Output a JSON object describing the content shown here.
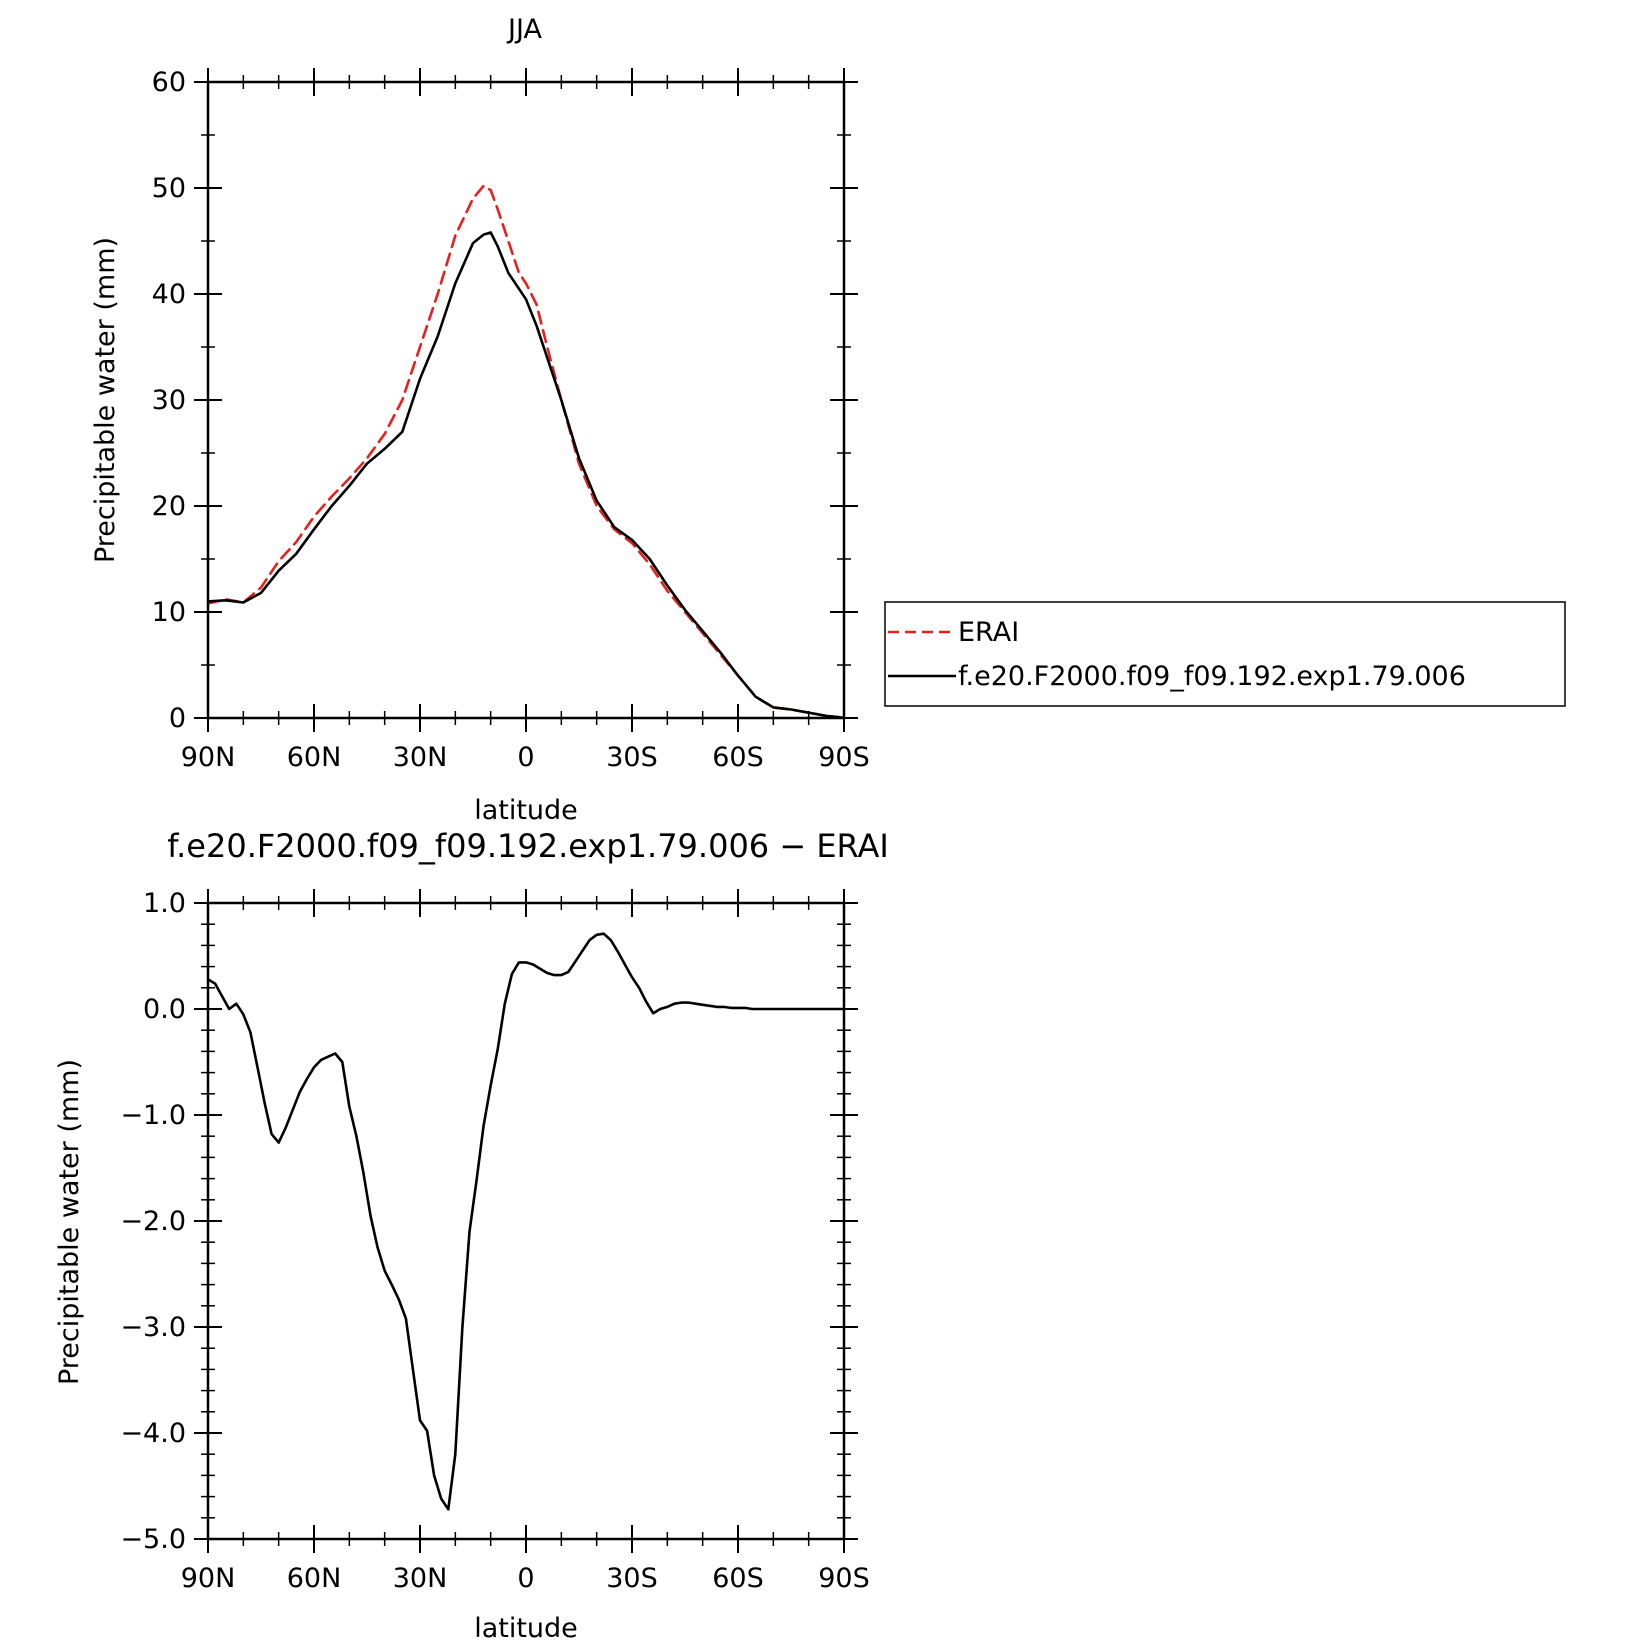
{
  "chart_data": [
    {
      "type": "line",
      "title": "JJA",
      "xlabel": "latitude",
      "ylabel": "Precipitable water (mm)",
      "xlim": [
        90,
        -90
      ],
      "ylim": [
        0,
        60
      ],
      "yticks": [
        0,
        10,
        20,
        30,
        40,
        50,
        60
      ],
      "ytick_labels": [
        "0",
        "10",
        "20",
        "30",
        "40",
        "50",
        "60"
      ],
      "xticks": [
        90,
        60,
        30,
        0,
        -30,
        -60,
        -90
      ],
      "xtick_labels": [
        "90N",
        "60N",
        "30N",
        "0",
        "30S",
        "60S",
        "90S"
      ],
      "legend_position": "right",
      "series": [
        {
          "name": "ERAI",
          "color": "#e8201d",
          "dash": "dashed",
          "x": [
            90,
            85,
            80,
            75,
            70,
            65,
            60,
            55,
            50,
            45,
            40,
            35,
            30,
            25,
            20,
            15,
            12,
            10,
            8,
            5,
            2,
            0,
            -3,
            -6,
            -10,
            -15,
            -20,
            -25,
            -30,
            -35,
            -40,
            -45,
            -50,
            -55,
            -60,
            -65,
            -70,
            -75,
            -80,
            -85,
            -88,
            -90
          ],
          "y": [
            10.8,
            11.2,
            10.9,
            12.3,
            14.8,
            16.6,
            19.0,
            20.9,
            22.6,
            24.5,
            26.8,
            30.0,
            35.0,
            40.0,
            45.5,
            49.0,
            50.2,
            49.8,
            48.0,
            45.0,
            42.0,
            41.0,
            39.0,
            35.0,
            30.0,
            24.0,
            20.0,
            17.8,
            16.5,
            14.5,
            12.0,
            10.0,
            8.0,
            6.0,
            4.0,
            2.0,
            1.0,
            0.8,
            0.5,
            0.2,
            0.1,
            0.0
          ]
        },
        {
          "name": "f.e20.F2000.f09_f09.192.exp1.79.006",
          "color": "#000000",
          "dash": "solid",
          "x": [
            90,
            85,
            80,
            75,
            70,
            65,
            60,
            55,
            50,
            45,
            40,
            35,
            30,
            25,
            20,
            15,
            12,
            10,
            8,
            5,
            2,
            0,
            -3,
            -6,
            -10,
            -15,
            -20,
            -25,
            -30,
            -35,
            -40,
            -45,
            -50,
            -55,
            -60,
            -65,
            -70,
            -75,
            -80,
            -85,
            -88,
            -90
          ],
          "y": [
            11.0,
            11.1,
            10.9,
            11.8,
            13.9,
            15.5,
            17.8,
            20.0,
            21.9,
            24.0,
            25.4,
            27.0,
            32.0,
            36.0,
            41.0,
            44.8,
            45.6,
            45.8,
            44.5,
            42.0,
            40.5,
            39.5,
            37.0,
            34.0,
            30.0,
            24.5,
            20.5,
            18.0,
            16.8,
            15.0,
            12.5,
            10.2,
            8.2,
            6.2,
            4.0,
            2.0,
            1.0,
            0.8,
            0.5,
            0.2,
            0.1,
            0.0
          ]
        }
      ]
    },
    {
      "type": "line",
      "title": "f.e20.F2000.f09_f09.192.exp1.79.006 − ERAI",
      "xlabel": "latitude",
      "ylabel": "Precipitable water (mm)",
      "xlim": [
        90,
        -90
      ],
      "ylim": [
        -5,
        1
      ],
      "yticks": [
        -5,
        -4,
        -3,
        -2,
        -1,
        0,
        1
      ],
      "ytick_labels": [
        "−5.0",
        "−4.0",
        "−3.0",
        "−2.0",
        "−1.0",
        "0.0",
        "1.0"
      ],
      "xticks": [
        90,
        60,
        30,
        0,
        -30,
        -60,
        -90
      ],
      "xtick_labels": [
        "90N",
        "60N",
        "30N",
        "0",
        "30S",
        "60S",
        "90S"
      ],
      "series": [
        {
          "color": "#000000",
          "dash": "solid",
          "x": [
            90,
            88,
            86,
            84,
            82,
            80,
            78,
            76,
            74,
            72,
            70,
            68,
            66,
            64,
            62,
            60,
            58,
            56,
            54,
            52,
            50,
            48,
            46,
            44,
            42,
            40,
            38,
            36,
            34,
            32,
            30,
            28,
            26,
            24,
            22,
            20,
            18,
            16,
            14,
            12,
            10,
            8,
            6,
            4,
            2,
            0,
            -2,
            -4,
            -6,
            -8,
            -10,
            -12,
            -14,
            -16,
            -18,
            -20,
            -22,
            -24,
            -26,
            -28,
            -30,
            -32,
            -34,
            -36,
            -38,
            -40,
            -42,
            -44,
            -46,
            -48,
            -50,
            -52,
            -54,
            -56,
            -58,
            -60,
            -62,
            -64,
            -66,
            -68,
            -70,
            -72,
            -74,
            -76,
            -78,
            -80,
            -82,
            -84,
            -86,
            -88,
            -90
          ],
          "y": [
            0.28,
            0.24,
            0.12,
            0.0,
            0.05,
            -0.05,
            -0.22,
            -0.55,
            -0.88,
            -1.18,
            -1.26,
            -1.12,
            -0.95,
            -0.78,
            -0.66,
            -0.55,
            -0.48,
            -0.45,
            -0.42,
            -0.5,
            -0.92,
            -1.2,
            -1.55,
            -1.95,
            -2.25,
            -2.47,
            -2.6,
            -2.74,
            -2.92,
            -3.4,
            -3.88,
            -3.98,
            -4.4,
            -4.62,
            -4.72,
            -4.2,
            -3.0,
            -2.1,
            -1.62,
            -1.1,
            -0.72,
            -0.38,
            0.05,
            0.33,
            0.44,
            0.44,
            0.42,
            0.38,
            0.34,
            0.32,
            0.32,
            0.35,
            0.45,
            0.55,
            0.65,
            0.7,
            0.71,
            0.65,
            0.54,
            0.42,
            0.3,
            0.2,
            0.07,
            -0.04,
            0.0,
            0.02,
            0.05,
            0.06,
            0.06,
            0.05,
            0.04,
            0.03,
            0.02,
            0.02,
            0.01,
            0.01,
            0.01,
            0.0,
            0.0,
            0.0,
            0.0,
            0.0,
            0.0,
            0.0,
            0.0,
            0.0,
            0.0,
            0.0,
            0.0,
            0.0,
            0.0
          ]
        }
      ]
    }
  ]
}
